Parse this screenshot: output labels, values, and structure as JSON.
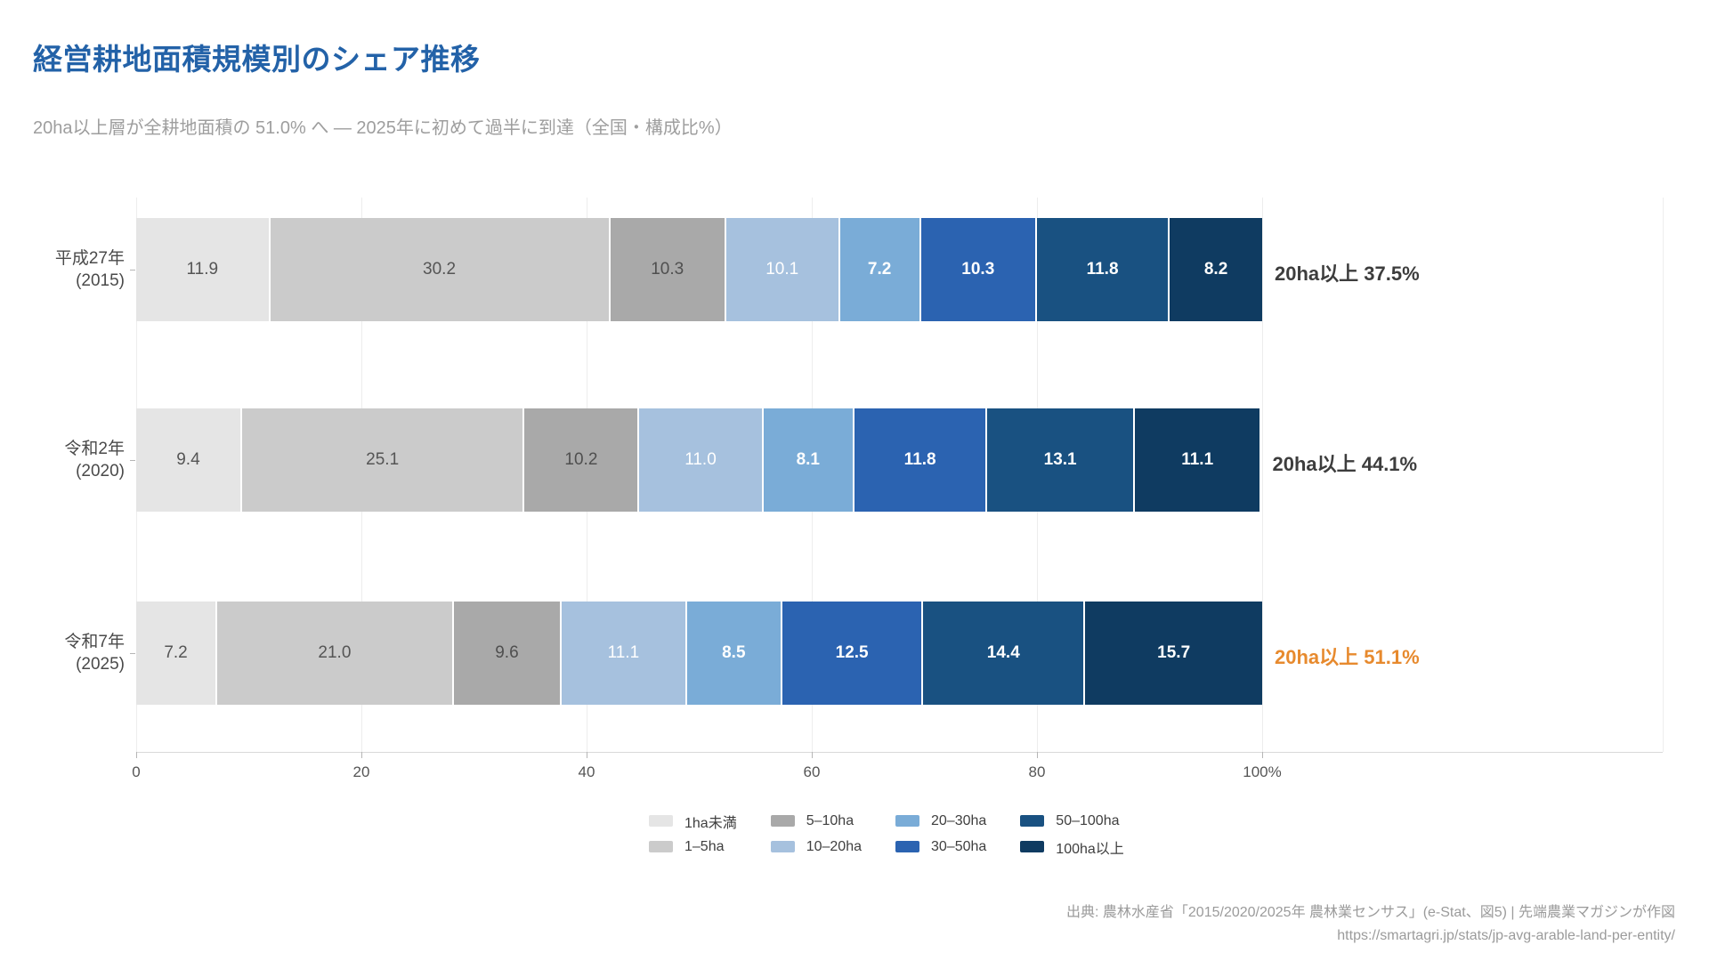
{
  "header": {
    "title": "経営耕地面積規模別のシェア推移",
    "title_color": "#2362a8",
    "subtitle": "20ha以上層が全耕地面積の 51.0% へ — 2025年に初めて過半に到達（全国・構成比%）"
  },
  "chart_data": {
    "type": "bar",
    "orientation": "horizontal",
    "stacked": true,
    "unit": "%",
    "xlim": [
      0,
      100
    ],
    "grid": true,
    "x_ticks": [
      {
        "value": 0,
        "label": "0"
      },
      {
        "value": 20,
        "label": "20"
      },
      {
        "value": 40,
        "label": "40"
      },
      {
        "value": 60,
        "label": "60"
      },
      {
        "value": 80,
        "label": "80"
      },
      {
        "value": 100,
        "label": "100%"
      }
    ],
    "categories": [
      {
        "line1": "平成27年",
        "line2": "(2015)"
      },
      {
        "line1": "令和2年",
        "line2": "(2020)"
      },
      {
        "line1": "令和7年",
        "line2": "(2025)"
      }
    ],
    "series": [
      {
        "name": "1ha未満",
        "color": "#e5e5e5",
        "label_color": "#555555",
        "label_bold": false,
        "values": [
          11.9,
          9.4,
          7.2
        ]
      },
      {
        "name": "1–5ha",
        "color": "#cbcbcb",
        "label_color": "#555555",
        "label_bold": false,
        "values": [
          30.2,
          25.1,
          21.0
        ]
      },
      {
        "name": "5–10ha",
        "color": "#a9a9a9",
        "label_color": "#4f4f4f",
        "label_bold": false,
        "values": [
          10.3,
          10.2,
          9.6
        ]
      },
      {
        "name": "10–20ha",
        "color": "#a6c1de",
        "label_color": "#ffffff",
        "label_bold": false,
        "values": [
          10.1,
          11.0,
          11.1
        ]
      },
      {
        "name": "20–30ha",
        "color": "#7aacd7",
        "label_color": "#ffffff",
        "label_bold": true,
        "values": [
          7.2,
          8.1,
          8.5
        ]
      },
      {
        "name": "30–50ha",
        "color": "#2b63b1",
        "label_color": "#ffffff",
        "label_bold": true,
        "values": [
          10.3,
          11.8,
          12.5
        ]
      },
      {
        "name": "50–100ha",
        "color": "#195181",
        "label_color": "#ffffff",
        "label_bold": true,
        "values": [
          11.8,
          13.1,
          14.4
        ]
      },
      {
        "name": "100ha以上",
        "color": "#0f3b61",
        "label_color": "#ffffff",
        "label_bold": true,
        "values": [
          8.2,
          11.1,
          15.7
        ]
      }
    ],
    "annotations": [
      {
        "text": "20ha以上 37.5%",
        "color": "#3d3d3d"
      },
      {
        "text": "20ha以上 44.1%",
        "color": "#3d3d3d"
      },
      {
        "text": "20ha以上 51.1%",
        "color": "#e78a2e"
      }
    ],
    "legend_position": "bottom-center"
  },
  "footer": {
    "source_line1": "出典: 農林水産省「2015/2020/2025年 農林業センサス」(e-Stat、図5) | 先端農業マガジンが作図",
    "source_line2": "https://smartagri.jp/stats/jp-avg-arable-land-per-entity/"
  }
}
